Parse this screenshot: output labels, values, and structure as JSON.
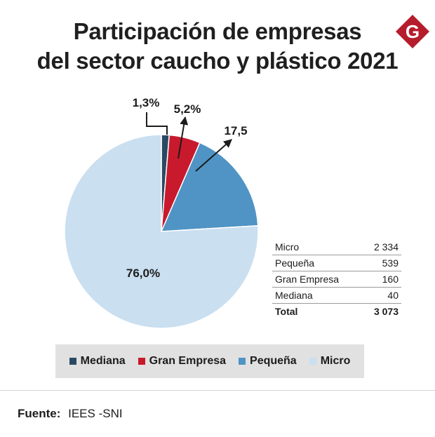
{
  "title_lines": [
    "Participación de empresas",
    "del sector caucho y plástico 2021"
  ],
  "logo": {
    "letter": "G",
    "color": "#b51d2c"
  },
  "chart_data": {
    "type": "pie",
    "title": "Participación de empresas del sector caucho y plástico 2021",
    "slices": [
      {
        "name": "Mediana",
        "value": 40,
        "label": "1,3%",
        "color": "#2a4a63"
      },
      {
        "name": "Gran Empresa",
        "value": 160,
        "label": "5,2%",
        "color": "#c8192d"
      },
      {
        "name": "Pequeña",
        "value": 539,
        "label": "17,5",
        "color": "#4f94c4"
      },
      {
        "name": "Micro",
        "value": 2334,
        "label": "76,0%",
        "color": "#cadff0"
      }
    ]
  },
  "table": {
    "rows": [
      {
        "name": "Micro",
        "value": "2 334"
      },
      {
        "name": "Pequeña",
        "value": "539"
      },
      {
        "name": "Gran Empresa",
        "value": "160"
      },
      {
        "name": "Mediana",
        "value": "40"
      }
    ],
    "total": {
      "name": "Total",
      "value": "3 073"
    }
  },
  "legend": [
    {
      "name": "Mediana",
      "color": "#2a4a63"
    },
    {
      "name": "Gran Empresa",
      "color": "#c8192d"
    },
    {
      "name": "Pequeña",
      "color": "#4f94c4"
    },
    {
      "name": "Micro",
      "color": "#cadff0"
    }
  ],
  "source": {
    "label": "Fuente:",
    "value": "IEES -SNI"
  }
}
